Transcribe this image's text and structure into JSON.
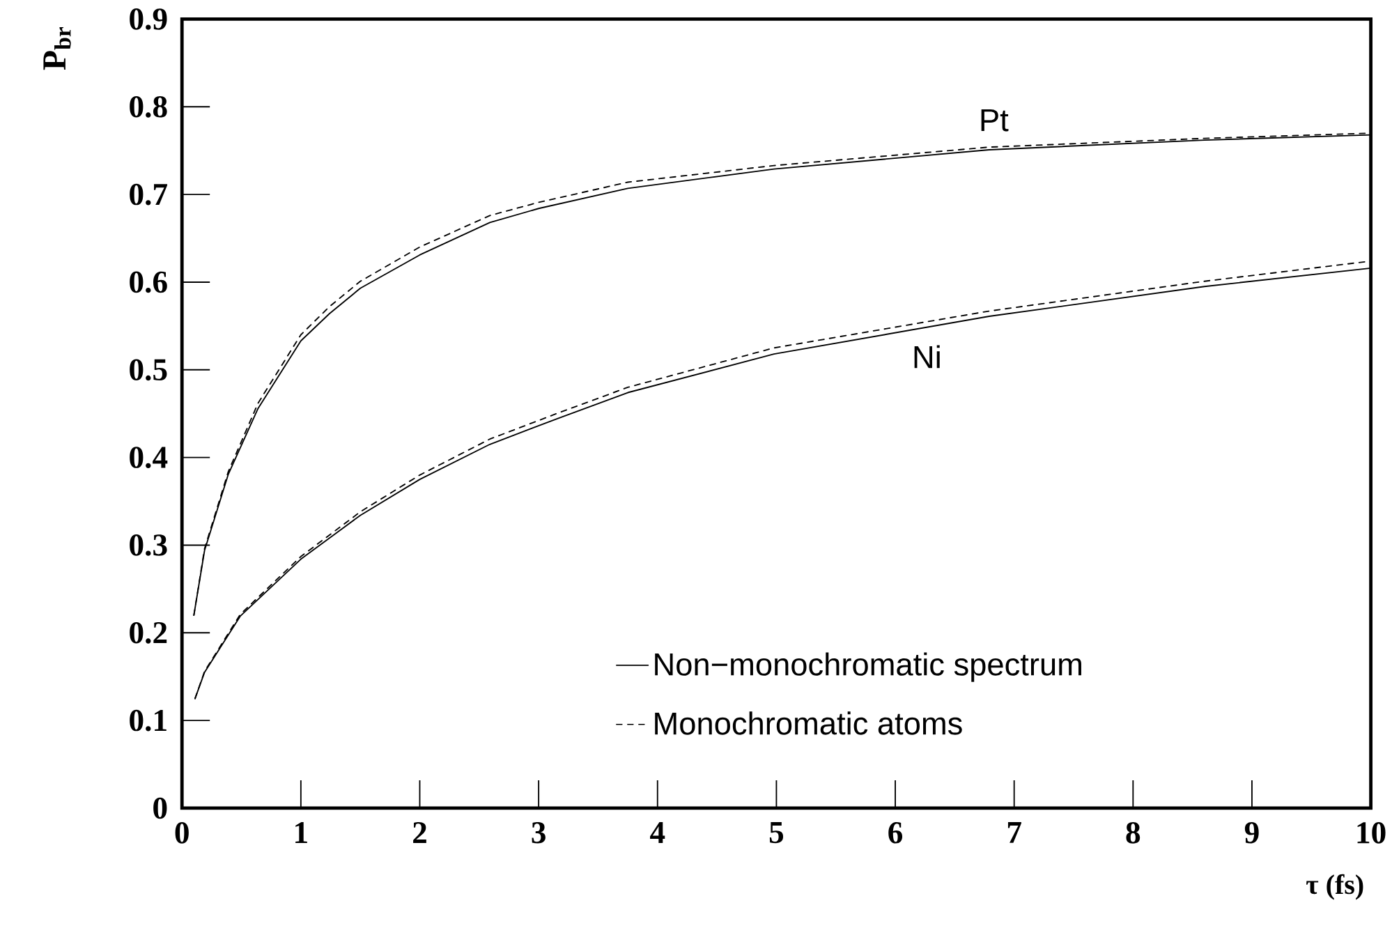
{
  "chart_data": {
    "type": "line",
    "xlabel": "τ (fs)",
    "ylabel": "P$_{br}$",
    "xlim": [
      0,
      10
    ],
    "ylim": [
      0,
      0.9
    ],
    "xticks": [
      0,
      1,
      2,
      3,
      4,
      5,
      6,
      7,
      8,
      9,
      10
    ],
    "yticks": [
      0,
      0.1,
      0.2,
      0.3,
      0.4,
      0.5,
      0.6,
      0.7,
      0.8,
      0.9
    ],
    "legend": "bottom",
    "series": [
      {
        "name": "Non−monochromatic spectrum",
        "color": "#000000",
        "line_style": "solid",
        "x": [
          0.1,
          0.19,
          0.39,
          0.64,
          1.0,
          1.24,
          1.5,
          2.0,
          2.59,
          3.0,
          3.75,
          4.98,
          6.79,
          8.6,
          10
        ],
        "values": [
          0.22,
          0.294,
          0.381,
          0.456,
          0.533,
          0.564,
          0.593,
          0.631,
          0.668,
          0.684,
          0.707,
          0.729,
          0.751,
          0.762,
          0.768
        ]
      },
      {
        "name": "Monochromatic atoms",
        "color": "#000000",
        "line_style": "dashed",
        "x": [
          0.1,
          0.19,
          0.39,
          0.64,
          1.0,
          1.24,
          1.5,
          2.0,
          2.59,
          3.0,
          3.75,
          4.98,
          6.79,
          8.6,
          10
        ],
        "values": [
          0.22,
          0.296,
          0.384,
          0.462,
          0.54,
          0.572,
          0.601,
          0.64,
          0.676,
          0.691,
          0.714,
          0.733,
          0.754,
          0.764,
          0.77
        ]
      },
      {
        "color": "#000000",
        "line_style": "solid",
        "x": [
          0.11,
          0.19,
          0.49,
          1.0,
          1.5,
          2.0,
          2.59,
          3.17,
          3.75,
          4.98,
          6.79,
          8.6,
          10
        ],
        "values": [
          0.125,
          0.155,
          0.219,
          0.284,
          0.334,
          0.375,
          0.415,
          0.445,
          0.474,
          0.518,
          0.561,
          0.595,
          0.616
        ]
      },
      {
        "color": "#000000",
        "line_style": "dashed",
        "x": [
          0.11,
          0.19,
          0.49,
          1.0,
          1.5,
          2.0,
          2.59,
          3.17,
          3.75,
          4.98,
          6.79,
          8.6,
          10
        ],
        "values": [
          0.125,
          0.156,
          0.221,
          0.287,
          0.338,
          0.38,
          0.421,
          0.451,
          0.48,
          0.525,
          0.567,
          0.601,
          0.624
        ]
      }
    ],
    "annotations": [
      {
        "text": "Pt",
        "x": 6.79,
        "y": 0.754
      },
      {
        "text": "Ni",
        "x": 6.79,
        "y": 0.561
      }
    ]
  }
}
